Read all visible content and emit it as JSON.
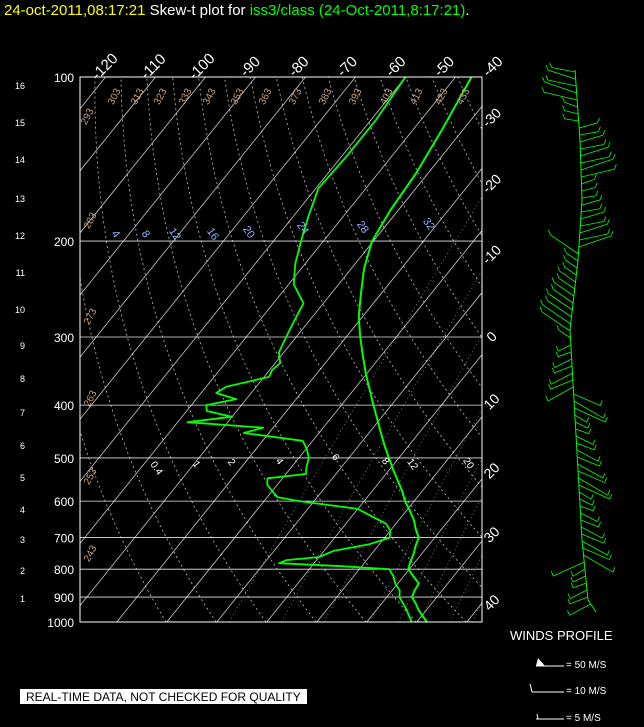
{
  "title": {
    "timestamp": "24-oct-2011,08:17:21",
    "label": "Skew-t plot for",
    "station": "iss3/class (24-Oct-2011,8:17:21)",
    "dot": "."
  },
  "notice": "REAL-TIME DATA, NOT CHECKED FOR QUALITY",
  "winds": {
    "title": "WINDS PROFILE",
    "legend": [
      "= 50 M/S",
      "= 10 M/S",
      "= 5 M/S"
    ]
  },
  "colors": {
    "background": "#000000",
    "trace": "#00ff00",
    "grid": "#ffffff",
    "mixing_ratio_label": "#8fb4ff",
    "dry_adiabat_label": "#c8a080",
    "title_time": "#ffff00"
  },
  "chart_data": {
    "type": "line",
    "pressure_ticks": [
      "100",
      "200",
      "300",
      "400",
      "500",
      "600",
      "700",
      "800",
      "900",
      "1000"
    ],
    "height_ticks_km": [
      "1",
      "2",
      "3",
      "4",
      "5",
      "6",
      "7",
      "8",
      "9",
      "10",
      "11",
      "12",
      "13",
      "14",
      "15",
      "16"
    ],
    "temperature_labels_top": [
      "-120",
      "-110",
      "-100",
      "-90",
      "-80",
      "-70",
      "-60",
      "-50",
      "-40"
    ],
    "temperature_labels_right": [
      "-30",
      "-20",
      "-10",
      "0",
      "10",
      "20",
      "30",
      "40"
    ],
    "dry_adiabat_labels": [
      "293",
      "303",
      "313",
      "323",
      "333",
      "343",
      "353",
      "363",
      "373",
      "383",
      "393",
      "403",
      "413",
      "423",
      "433",
      "283",
      "273",
      "263",
      "253",
      "243"
    ],
    "mixing_ratio_labels_upper": [
      "4",
      "8",
      "12",
      "16",
      "20",
      "24",
      "28",
      "32"
    ],
    "mixing_ratio_labels_lower": [
      "0.4",
      "1",
      "2",
      "4",
      "6",
      "8",
      "12",
      "20"
    ],
    "series": [
      {
        "values": [
          [
            1000,
            12.0
          ],
          [
            975,
            10.2
          ],
          [
            950,
            8.4
          ],
          [
            925,
            6.8
          ],
          [
            900,
            5.0
          ],
          [
            875,
            4.5
          ],
          [
            850,
            4.2
          ],
          [
            825,
            2.0
          ],
          [
            800,
            -0.2
          ],
          [
            775,
            -1.0
          ],
          [
            750,
            -1.6
          ],
          [
            725,
            -2.5
          ],
          [
            700,
            -3.2
          ],
          [
            675,
            -5.2
          ],
          [
            650,
            -7.0
          ],
          [
            625,
            -9.3
          ],
          [
            600,
            -11.8
          ],
          [
            575,
            -14.0
          ],
          [
            550,
            -16.6
          ],
          [
            525,
            -19.3
          ],
          [
            500,
            -22.0
          ],
          [
            475,
            -24.8
          ],
          [
            450,
            -27.6
          ],
          [
            425,
            -30.5
          ],
          [
            400,
            -33.6
          ],
          [
            375,
            -36.8
          ],
          [
            350,
            -40.2
          ],
          [
            325,
            -43.6
          ],
          [
            300,
            -47.2
          ],
          [
            275,
            -50.8
          ],
          [
            250,
            -54.0
          ],
          [
            225,
            -57.4
          ],
          [
            200,
            -60.3
          ],
          [
            175,
            -61.6
          ],
          [
            150,
            -62.4
          ],
          [
            125,
            -64.2
          ],
          [
            100,
            -66.8
          ]
        ]
      },
      {
        "values": [
          [
            1000,
            9.0
          ],
          [
            975,
            7.5
          ],
          [
            950,
            6.0
          ],
          [
            925,
            4.3
          ],
          [
            900,
            2.5
          ],
          [
            875,
            1.5
          ],
          [
            850,
            -0.5
          ],
          [
            825,
            -2.0
          ],
          [
            800,
            -4.0
          ],
          [
            790,
            -14.0
          ],
          [
            780,
            -27.0
          ],
          [
            770,
            -26.0
          ],
          [
            760,
            -20.0
          ],
          [
            740,
            -18.0
          ],
          [
            720,
            -12.0
          ],
          [
            700,
            -9.0
          ],
          [
            680,
            -10.0
          ],
          [
            660,
            -12.0
          ],
          [
            640,
            -16.0
          ],
          [
            620,
            -20.0
          ],
          [
            600,
            -33.0
          ],
          [
            590,
            -38.0
          ],
          [
            575,
            -40.0
          ],
          [
            560,
            -42.0
          ],
          [
            545,
            -43.0
          ],
          [
            535,
            -36.0
          ],
          [
            520,
            -37.0
          ],
          [
            500,
            -38.0
          ],
          [
            480,
            -40.0
          ],
          [
            465,
            -42.0
          ],
          [
            450,
            -55.0
          ],
          [
            440,
            -52.0
          ],
          [
            430,
            -68.0
          ],
          [
            420,
            -60.0
          ],
          [
            410,
            -66.0
          ],
          [
            400,
            -67.0
          ],
          [
            390,
            -62.0
          ],
          [
            380,
            -67.0
          ],
          [
            370,
            -66.0
          ],
          [
            355,
            -59.0
          ],
          [
            345,
            -59.5
          ],
          [
            335,
            -59.0
          ],
          [
            320,
            -61.0
          ],
          [
            300,
            -62.0
          ],
          [
            280,
            -63.0
          ],
          [
            260,
            -64.0
          ],
          [
            240,
            -69.0
          ],
          [
            220,
            -72.0
          ],
          [
            200,
            -74.5
          ],
          [
            180,
            -77.0
          ],
          [
            160,
            -79.5
          ],
          [
            140,
            -79.0
          ],
          [
            120,
            -79.0
          ],
          [
            100,
            -80.0
          ]
        ]
      }
    ]
  }
}
